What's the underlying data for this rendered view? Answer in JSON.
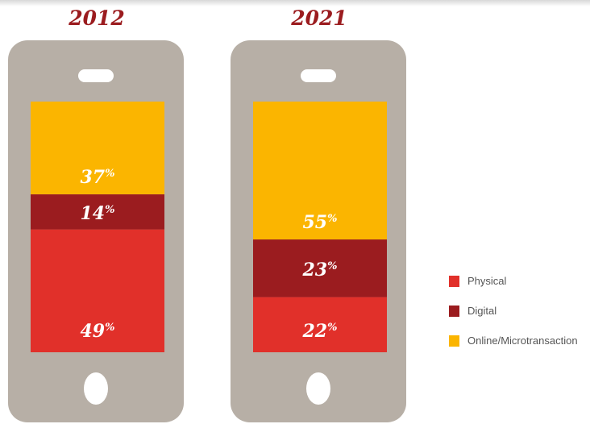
{
  "chart_data": {
    "type": "bar",
    "stacked": true,
    "percent": true,
    "categories": [
      "2012",
      "2021"
    ],
    "series": [
      {
        "name": "Physical",
        "color": "#e1302a",
        "values": [
          49,
          22
        ]
      },
      {
        "name": "Digital",
        "color": "#9b1c1f",
        "values": [
          14,
          23
        ]
      },
      {
        "name": "Online/Microtransaction",
        "color": "#fbb500",
        "values": [
          37,
          55
        ]
      }
    ],
    "data_labels": {
      "2012": {
        "Physical": "49%",
        "Digital": "14%",
        "Online/Microtransaction": "37%"
      },
      "2021": {
        "Physical": "22%",
        "Digital": "23%",
        "Online/Microtransaction": "55%"
      }
    },
    "legend": {
      "placement": "right"
    },
    "style": {
      "phone_color": "#b7afa6",
      "year_color": "#9b1c1f"
    }
  }
}
